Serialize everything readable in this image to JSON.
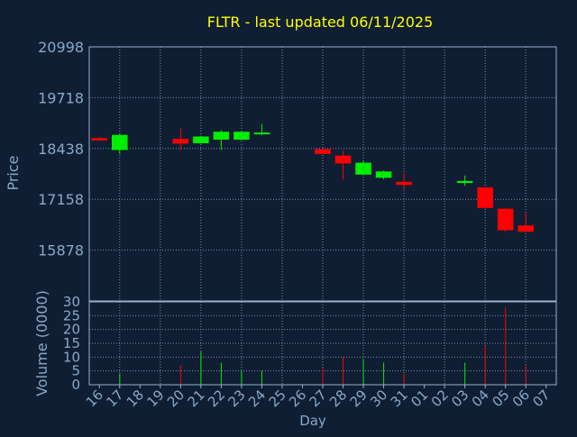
{
  "chart_data": {
    "type": "candlestick",
    "title": "FLTR - last updated 06/11/2025",
    "xlabel": "Day",
    "price_panel": {
      "ylabel": "Price",
      "ylim": [
        14598,
        20998
      ],
      "yticks": [
        20998,
        19718,
        18438,
        17158,
        15878
      ],
      "grid": true
    },
    "volume_panel": {
      "ylabel": "Volume (0000)",
      "ylim": [
        0,
        30
      ],
      "yticks": [
        0,
        5,
        10,
        15,
        20,
        25,
        30
      ],
      "grid": true
    },
    "categories": [
      "16",
      "17",
      "18",
      "19",
      "20",
      "21",
      "22",
      "23",
      "24",
      "25",
      "26",
      "27",
      "28",
      "29",
      "30",
      "31",
      "01",
      "02",
      "03",
      "04",
      "05",
      "06",
      "07"
    ],
    "candles": [
      {
        "day": "16",
        "open": 18700,
        "high": 18720,
        "low": 18640,
        "close": 18640,
        "volume": 0
      },
      {
        "day": "17",
        "open": 18400,
        "high": 18800,
        "low": 18300,
        "close": 18780,
        "volume": 4
      },
      {
        "day": "20",
        "open": 18680,
        "high": 18950,
        "low": 18400,
        "close": 18560,
        "volume": 7
      },
      {
        "day": "21",
        "open": 18570,
        "high": 18760,
        "low": 18560,
        "close": 18740,
        "volume": 12
      },
      {
        "day": "22",
        "open": 18660,
        "high": 18900,
        "low": 18400,
        "close": 18860,
        "volume": 8
      },
      {
        "day": "23",
        "open": 18660,
        "high": 18880,
        "low": 18640,
        "close": 18860,
        "volume": 5
      },
      {
        "day": "24",
        "open": 18820,
        "high": 19060,
        "low": 18770,
        "close": 18840,
        "volume": 5
      },
      {
        "day": "27",
        "open": 18420,
        "high": 18460,
        "low": 18300,
        "close": 18300,
        "volume": 6
      },
      {
        "day": "28",
        "open": 18260,
        "high": 18380,
        "low": 17660,
        "close": 18060,
        "volume": 10
      },
      {
        "day": "29",
        "open": 17780,
        "high": 18120,
        "low": 17760,
        "close": 18080,
        "volume": 9
      },
      {
        "day": "30",
        "open": 17700,
        "high": 17880,
        "low": 17660,
        "close": 17860,
        "volume": 8
      },
      {
        "day": "31",
        "open": 17600,
        "high": 17820,
        "low": 17400,
        "close": 17520,
        "volume": 4
      },
      {
        "day": "03",
        "open": 17570,
        "high": 17760,
        "low": 17500,
        "close": 17620,
        "volume": 8
      },
      {
        "day": "04",
        "open": 17460,
        "high": 17460,
        "low": 16920,
        "close": 16940,
        "volume": 14
      },
      {
        "day": "05",
        "open": 16920,
        "high": 16940,
        "low": 16330,
        "close": 16380,
        "volume": 28
      },
      {
        "day": "06",
        "open": 16500,
        "high": 16840,
        "low": 16330,
        "close": 16340,
        "volume": 7
      }
    ],
    "colors": {
      "background": "#0f1e33",
      "plot_background": "#0f1e33",
      "up": "#00ee00",
      "down": "#ff0000",
      "title": "#ffff00",
      "axis_text": "#8aa8c8",
      "grid": "#8090a8",
      "frame": "#9ab0cc"
    }
  }
}
